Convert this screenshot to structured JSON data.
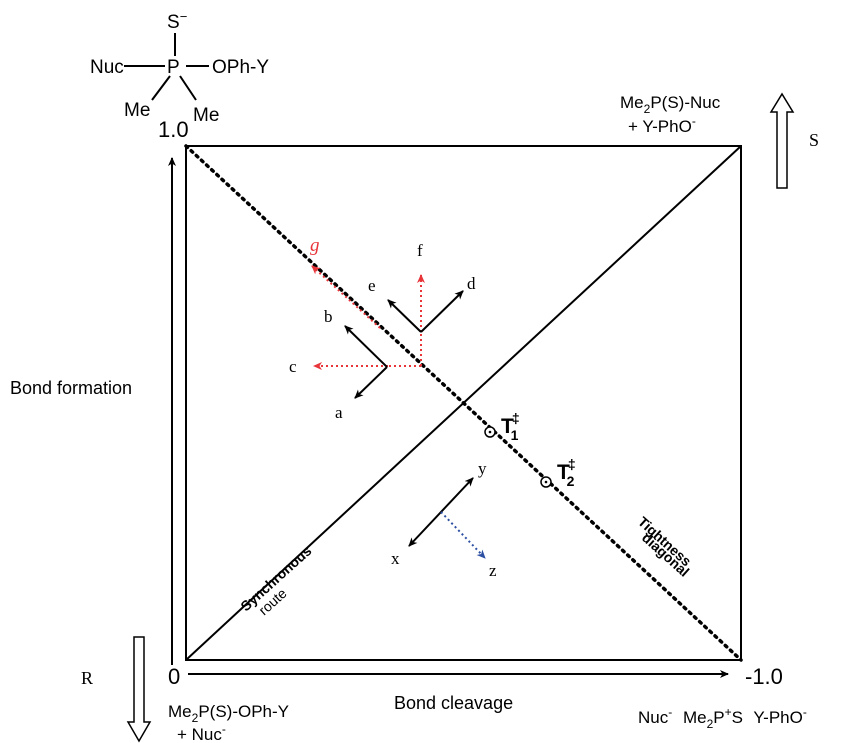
{
  "structure": {
    "s_minus": "S",
    "s_minus_sup": "−",
    "nuc": "Nuc",
    "p": "P",
    "oph_y": "OPh-Y",
    "me_left": "Me",
    "me_right": "Me"
  },
  "corners": {
    "top_right_line1_a": "Me",
    "top_right_line1_sub": "2",
    "top_right_line1_b": "P(S)-Nuc",
    "top_right_line2_a": "+ Y-PhO",
    "top_right_line2_sup": "-",
    "bottom_left_line1_a": "Me",
    "bottom_left_line1_sub": "2",
    "bottom_left_line1_b": "P(S)-OPh-Y",
    "bottom_left_line2_a": "+ Nuc",
    "bottom_left_line2_sup": "-",
    "bottom_right_nuc": "Nuc",
    "bottom_right_nuc_sup": "-",
    "bottom_right_me": "Me",
    "bottom_right_me_sub": "2",
    "bottom_right_p": "P",
    "bottom_right_p_sup": "+",
    "bottom_right_s": "S",
    "bottom_right_yph": "Y-PhO",
    "bottom_right_yph_sup": "-"
  },
  "axes": {
    "y_max": "1.0",
    "origin": "0",
    "x_max": "-1.0",
    "y_label": "Bond formation",
    "x_label": "Bond cleavage",
    "s_label": "S",
    "r_label": "R"
  },
  "diagonals": {
    "synchronous_1": "Synchronous",
    "synchronous_2": "route",
    "tightness_1": "Tightness",
    "tightness_2": "diagonal"
  },
  "transition_states": {
    "t1_main": "T",
    "t1_sup": "‡",
    "t1_sub": "1",
    "t2_main": "T",
    "t2_sup": "‡",
    "t2_sub": "2"
  },
  "vectors": {
    "a": "a",
    "b": "b",
    "c": "c",
    "d": "d",
    "e": "e",
    "f": "f",
    "g": "g",
    "x": "x",
    "y": "y",
    "z": "z"
  },
  "colors": {
    "black": "#000000",
    "red": "#e8353a",
    "blue": "#2d4fa3"
  }
}
